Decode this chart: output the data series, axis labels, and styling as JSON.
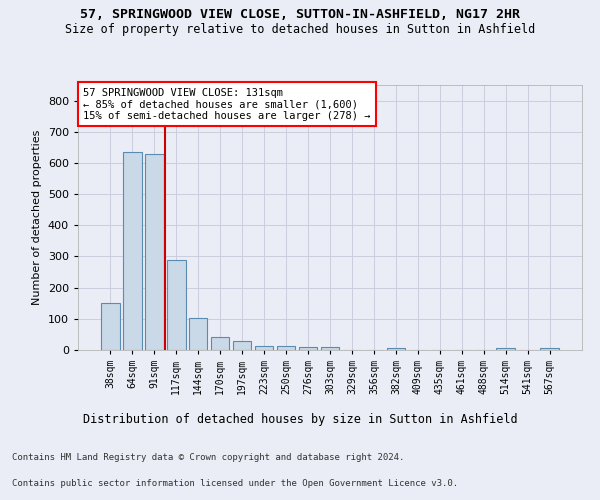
{
  "title": "57, SPRINGWOOD VIEW CLOSE, SUTTON-IN-ASHFIELD, NG17 2HR",
  "subtitle": "Size of property relative to detached houses in Sutton in Ashfield",
  "xlabel": "Distribution of detached houses by size in Sutton in Ashfield",
  "ylabel": "Number of detached properties",
  "footer1": "Contains HM Land Registry data © Crown copyright and database right 2024.",
  "footer2": "Contains public sector information licensed under the Open Government Licence v3.0.",
  "bar_labels": [
    "38sqm",
    "64sqm",
    "91sqm",
    "117sqm",
    "144sqm",
    "170sqm",
    "197sqm",
    "223sqm",
    "250sqm",
    "276sqm",
    "303sqm",
    "329sqm",
    "356sqm",
    "382sqm",
    "409sqm",
    "435sqm",
    "461sqm",
    "488sqm",
    "514sqm",
    "541sqm",
    "567sqm"
  ],
  "bar_values": [
    150,
    635,
    628,
    290,
    103,
    42,
    29,
    12,
    12,
    10,
    10,
    0,
    0,
    8,
    0,
    0,
    0,
    0,
    8,
    0,
    8
  ],
  "bar_color": "#c9d9e8",
  "bar_edge_color": "#5a8bb0",
  "ylim": [
    0,
    850
  ],
  "yticks": [
    0,
    100,
    200,
    300,
    400,
    500,
    600,
    700,
    800
  ],
  "red_line_bar_index": 3,
  "annotation_text_line1": "57 SPRINGWOOD VIEW CLOSE: 131sqm",
  "annotation_text_line2": "← 85% of detached houses are smaller (1,600)",
  "annotation_text_line3": "15% of semi-detached houses are larger (278) →",
  "annotation_box_color": "white",
  "annotation_box_edge_color": "red",
  "red_line_color": "#cc0000",
  "grid_color": "#ccccdd",
  "background_color": "#eaedf5",
  "axes_bg_color": "#eaedf5"
}
